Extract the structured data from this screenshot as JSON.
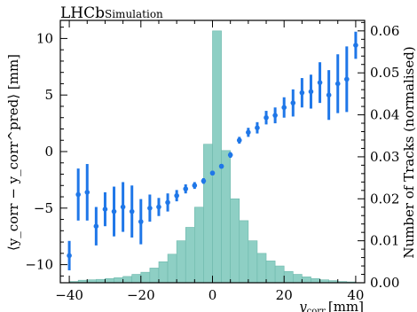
{
  "chart_data": {
    "type": "combined",
    "header": {
      "experiment": "LHCb",
      "label": "Simulation"
    },
    "x_axis": {
      "label_main": "y",
      "label_sub": "corr",
      "label_unit": "[mm]",
      "lim": [
        -42.5,
        42.5
      ],
      "ticks": [
        -40,
        -20,
        0,
        20,
        40
      ],
      "tick_labels": [
        "−40",
        "−20",
        "0",
        "20",
        "40"
      ]
    },
    "y_left": {
      "label_text": "⟨y_corr − y_corr^pred⟩ [mm]",
      "lim": [
        -11.6,
        11.6
      ],
      "ticks": [
        -10,
        -5,
        0,
        5,
        10
      ],
      "tick_labels": [
        "−10",
        "−5",
        "0",
        "5",
        "10"
      ]
    },
    "y_right": {
      "label": "Number of Tracks (normalised)",
      "lim": [
        0,
        0.0625
      ],
      "ticks": [
        0.0,
        0.01,
        0.02,
        0.03,
        0.04,
        0.05,
        0.06
      ],
      "tick_labels": [
        "0.00",
        "0.01",
        "0.02",
        "0.03",
        "0.04",
        "0.05",
        "0.06"
      ]
    },
    "histogram": {
      "color": "#8ecfc4",
      "edge_color": "#6db8ac",
      "bin_edges": [
        -40,
        -37.5,
        -35,
        -32.5,
        -30,
        -27.5,
        -25,
        -22.5,
        -20,
        -17.5,
        -15,
        -12.5,
        -10,
        -7.5,
        -5,
        -2.5,
        0,
        2.5,
        5,
        7.5,
        10,
        12.5,
        15,
        17.5,
        20,
        22.5,
        25,
        27.5,
        30,
        32.5,
        35,
        37.5,
        40
      ],
      "values": [
        0.0003,
        0.0006,
        0.0007,
        0.0008,
        0.001,
        0.0012,
        0.0015,
        0.002,
        0.0025,
        0.0035,
        0.005,
        0.0068,
        0.01,
        0.0132,
        0.018,
        0.033,
        0.06,
        0.0315,
        0.02,
        0.0148,
        0.01,
        0.007,
        0.0052,
        0.004,
        0.0027,
        0.002,
        0.0014,
        0.001,
        0.0007,
        0.0005,
        0.0003,
        0.0002
      ]
    },
    "points": {
      "color": "#1f77e8",
      "x": [
        -40,
        -37.5,
        -35,
        -32.5,
        -30,
        -27.5,
        -25,
        -22.5,
        -20,
        -17.5,
        -15,
        -12.5,
        -10,
        -7.5,
        -5,
        -2.5,
        0,
        2.5,
        5,
        7.5,
        10,
        12.5,
        15,
        17.5,
        20,
        22.5,
        25,
        27.5,
        30,
        32.5,
        35,
        37.5,
        40
      ],
      "y": [
        -9.2,
        -3.8,
        -3.6,
        -6.6,
        -5.1,
        -5.3,
        -4.9,
        -5.3,
        -6.2,
        -5.0,
        -4.9,
        -4.5,
        -3.9,
        -3.3,
        -3.0,
        -2.6,
        -1.9,
        -1.3,
        -0.3,
        1.0,
        1.7,
        2.1,
        3.0,
        3.2,
        3.9,
        4.3,
        5.2,
        5.3,
        6.1,
        5.0,
        6.0,
        6.4,
        9.4
      ],
      "err": [
        1.3,
        2.3,
        2.5,
        1.7,
        1.5,
        2.2,
        2.2,
        2.3,
        2.0,
        1.2,
        0.8,
        0.8,
        0.5,
        0.4,
        0.3,
        0.25,
        0.2,
        0.2,
        0.25,
        0.3,
        0.4,
        0.5,
        0.6,
        0.7,
        0.9,
        1.2,
        1.3,
        1.5,
        1.8,
        2.2,
        2.6,
        2.9,
        1.2
      ]
    }
  }
}
